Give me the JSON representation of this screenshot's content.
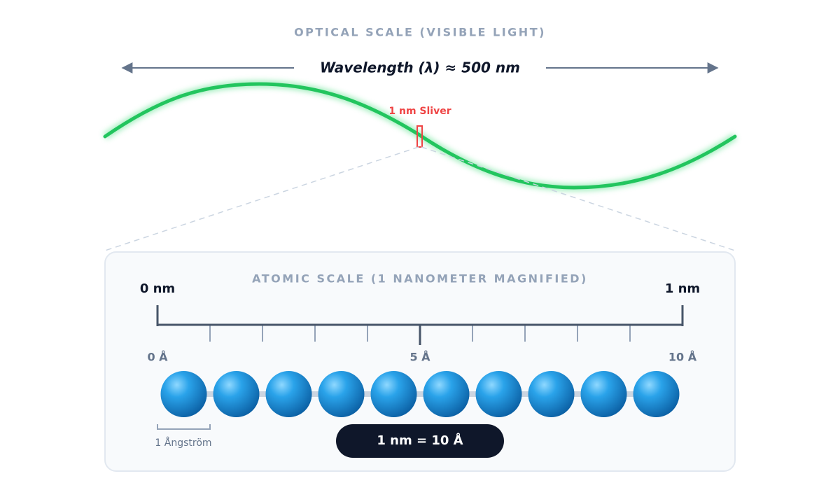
{
  "optical": {
    "title": "OPTICAL SCALE (VISIBLE LIGHT)",
    "wavelength_label": "Wavelength (λ) ≈ 500 nm",
    "sliver_label": "1 nm Sliver"
  },
  "atomic": {
    "title": "ATOMIC SCALE (1 NANOMETER MAGNIFIED)",
    "start_label": "0 nm",
    "end_label": "1 nm",
    "angstrom_labels": [
      "0 Å",
      "5 Å",
      "10 Å"
    ],
    "bracket_label": "1 Ångström",
    "equivalence": "1 nm = 10 Å"
  }
}
